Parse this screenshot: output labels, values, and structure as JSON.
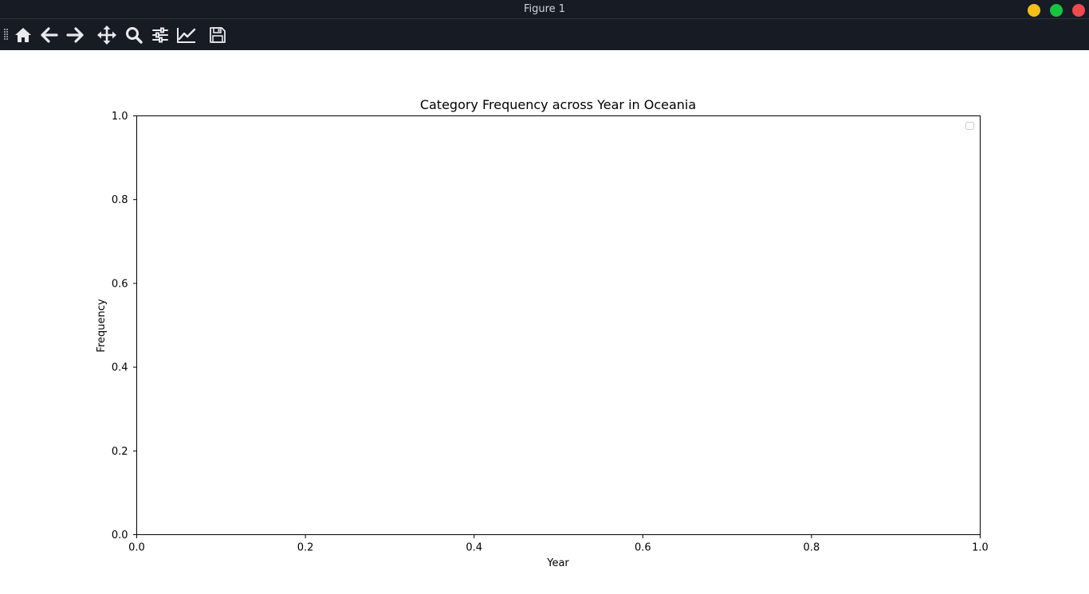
{
  "window": {
    "title": "Figure 1",
    "controls": {
      "minimize_color": "#f5bf16",
      "maximize_color": "#17c640",
      "close_color": "#f0494f"
    }
  },
  "toolbar": {
    "buttons": [
      {
        "name": "home",
        "icon": "home-icon"
      },
      {
        "name": "back",
        "icon": "arrow-left-icon"
      },
      {
        "name": "forward",
        "icon": "arrow-right-icon"
      },
      {
        "name": "pan",
        "icon": "move-icon"
      },
      {
        "name": "zoom",
        "icon": "magnifier-icon"
      },
      {
        "name": "configure-subplots",
        "icon": "sliders-icon"
      },
      {
        "name": "edit-axis",
        "icon": "line-chart-icon"
      },
      {
        "name": "save",
        "icon": "floppy-disk-icon"
      }
    ]
  },
  "chart_data": {
    "type": "line",
    "title": "Category Frequency across Year in Oceania",
    "xlabel": "Year",
    "ylabel": "Frequency",
    "xlim": [
      0.0,
      1.0
    ],
    "ylim": [
      0.0,
      1.0
    ],
    "xticks": [
      "0.0",
      "0.2",
      "0.4",
      "0.6",
      "0.8",
      "1.0"
    ],
    "yticks": [
      "0.0",
      "0.2",
      "0.4",
      "0.6",
      "0.8",
      "1.0"
    ],
    "series": [],
    "grid": false,
    "legend": {
      "placement": "top-right",
      "entries": []
    }
  }
}
